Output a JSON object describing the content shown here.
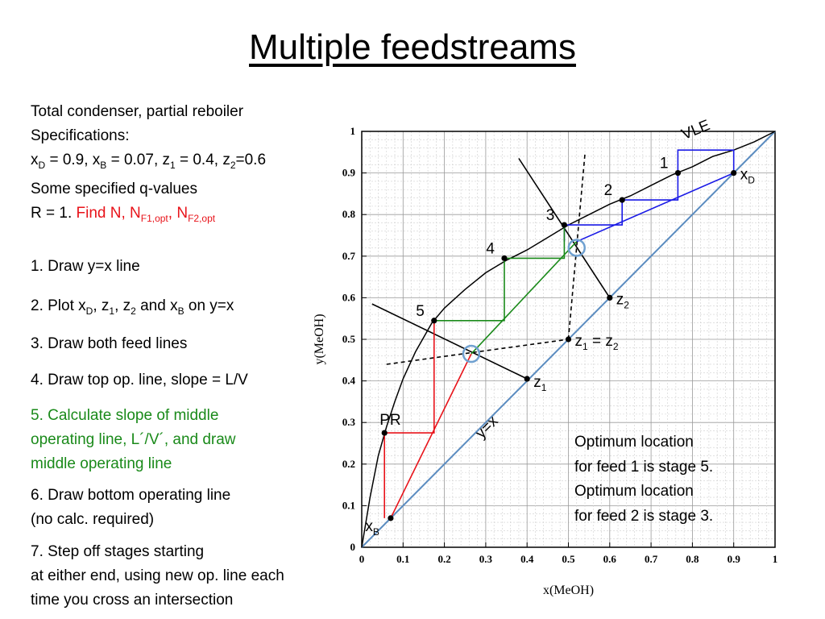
{
  "title": "Multiple feedstreams",
  "spec": {
    "line1": "Total condenser, partial reboiler",
    "line2": "Specifications:",
    "xd_label": "x",
    "xd_sub": "D",
    "xd_val": " = 0.9, x",
    "xb_sub": "B",
    "xb_val": " = 0.07,  z",
    "z1_sub": "1",
    "z1_val": " = 0.4, z",
    "z2_sub": "2",
    "z2_val": "=0.6",
    "line4": "Some specified q-values",
    "r_text": "R = 1. ",
    "find_text": "Find N, N",
    "nf1_sub": "F1,opt",
    "comma": ", N",
    "nf2_sub": "F2,opt"
  },
  "steps": {
    "s1": "1. Draw y=x line",
    "s2_a": "2. Plot x",
    "s2_sub_d": "D",
    "s2_b": ", z",
    "s2_sub_1": "1",
    "s2_c": ", z",
    "s2_sub_2": "2",
    "s2_d": " and x",
    "s2_sub_b": "B",
    "s2_e": " on y=x",
    "s3": "3. Draw both feed lines",
    "s4": "4. Draw top op. line, slope = L/V",
    "s5_l1": "5. Calculate slope of middle",
    "s5_l2": "operating line, L´/V´, and draw",
    "s5_l3": "middle operating line",
    "s6_l1": "6. Draw bottom operating line",
    "s6_l2": "(no calc. required)",
    "s7_l1": "7. Step off stages starting",
    "s7_l2": "at either end, using new op. line each",
    "s7_l3": "time you cross an intersection"
  },
  "notes": {
    "n1": "Optimum location",
    "n2": "for feed 1 is stage 5.",
    "n3": "Optimum location",
    "n4": "for feed 2 is stage 3."
  },
  "chart_data": {
    "type": "line",
    "xlabel": "x(MeOH)",
    "ylabel": "y(MeOH)",
    "xlim": [
      0,
      1
    ],
    "ylim": [
      0,
      1
    ],
    "grid": true,
    "x_ticks": [
      "0",
      "0.1",
      "0.2",
      "0.3",
      "0.4",
      "0.5",
      "0.6",
      "0.7",
      "0.8",
      "0.9",
      "1"
    ],
    "y_ticks": [
      "0",
      "0.1",
      "0.2",
      "0.3",
      "0.4",
      "0.5",
      "0.6",
      "0.7",
      "0.8",
      "0.9",
      "1"
    ],
    "vle_label": "VLE",
    "yx_label": "y=x",
    "colors": {
      "vle": "#000000",
      "diagonal": "#5b8cc0",
      "top_op": "#1a1ae6",
      "middle_op": "#1a8a1a",
      "bottom_op": "#e8131a",
      "feed_line": "#000000",
      "circle": "#6fa0d0"
    },
    "vle_curve": [
      [
        0,
        0
      ],
      [
        0.02,
        0.12
      ],
      [
        0.04,
        0.22
      ],
      [
        0.06,
        0.29
      ],
      [
        0.08,
        0.35
      ],
      [
        0.1,
        0.405
      ],
      [
        0.13,
        0.47
      ],
      [
        0.17,
        0.54
      ],
      [
        0.2,
        0.575
      ],
      [
        0.25,
        0.62
      ],
      [
        0.3,
        0.66
      ],
      [
        0.35,
        0.69
      ],
      [
        0.4,
        0.715
      ],
      [
        0.45,
        0.745
      ],
      [
        0.5,
        0.775
      ],
      [
        0.55,
        0.8
      ],
      [
        0.6,
        0.825
      ],
      [
        0.65,
        0.845
      ],
      [
        0.7,
        0.87
      ],
      [
        0.75,
        0.895
      ],
      [
        0.8,
        0.915
      ],
      [
        0.85,
        0.94
      ],
      [
        0.9,
        0.955
      ],
      [
        0.95,
        0.975
      ],
      [
        1.0,
        1.0
      ]
    ],
    "diagonal": [
      [
        0,
        0
      ],
      [
        1,
        1
      ]
    ],
    "top_op_line": [
      [
        0.52,
        0.735
      ],
      [
        0.9,
        0.9
      ]
    ],
    "middle_op_line": [
      [
        0.265,
        0.465
      ],
      [
        0.52,
        0.735
      ]
    ],
    "bottom_op_line": [
      [
        0.07,
        0.07
      ],
      [
        0.265,
        0.465
      ]
    ],
    "feed_line_1": [
      [
        0.025,
        0.585
      ],
      [
        0.4,
        0.405
      ]
    ],
    "feed_line_2": [
      [
        0.38,
        0.935
      ],
      [
        0.6,
        0.6
      ]
    ],
    "dashed_feed_lines": [
      [
        [
          0.06,
          0.44
        ],
        [
          0.5,
          0.5
        ]
      ],
      [
        [
          0.5,
          0.5
        ],
        [
          0.54,
          0.945
        ]
      ]
    ],
    "stages_top": [
      [
        0.9,
        0.9
      ],
      [
        0.9,
        0.955
      ],
      [
        0.765,
        0.955
      ],
      [
        0.765,
        0.9
      ],
      [
        0.765,
        0.835
      ],
      [
        0.63,
        0.835
      ],
      [
        0.63,
        0.775
      ],
      [
        0.63,
        0.775
      ],
      [
        0.49,
        0.775
      ],
      [
        0.49,
        0.735
      ]
    ],
    "stages_middle": [
      [
        0.49,
        0.775
      ],
      [
        0.49,
        0.695
      ],
      [
        0.345,
        0.695
      ],
      [
        0.345,
        0.625
      ],
      [
        0.345,
        0.545
      ],
      [
        0.175,
        0.545
      ],
      [
        0.175,
        0.535
      ]
    ],
    "stages_bottom": [
      [
        0.175,
        0.545
      ],
      [
        0.175,
        0.275
      ],
      [
        0.055,
        0.275
      ],
      [
        0.055,
        0.07
      ]
    ],
    "stage_points": [
      {
        "label": "1",
        "x": 0.765,
        "y": 0.9
      },
      {
        "label": "2",
        "x": 0.63,
        "y": 0.835
      },
      {
        "label": "3",
        "x": 0.49,
        "y": 0.775
      },
      {
        "label": "4",
        "x": 0.345,
        "y": 0.695
      },
      {
        "label": "5",
        "x": 0.175,
        "y": 0.545
      }
    ],
    "feed_points": [
      {
        "label": "x",
        "sub": "D",
        "x": 0.9,
        "y": 0.9
      },
      {
        "label": "z",
        "sub": "2",
        "x": 0.6,
        "y": 0.6
      },
      {
        "label": "z",
        "sub": "1",
        "x": 0.4,
        "y": 0.405
      },
      {
        "label": "z",
        "sub": "1",
        "label2": " = z",
        "sub2": "2",
        "x": 0.5,
        "y": 0.5
      },
      {
        "label": "x",
        "sub": "B",
        "x": 0.07,
        "y": 0.07
      }
    ],
    "pr_label": "PR",
    "pr_point": {
      "x": 0.055,
      "y": 0.275
    },
    "intersections": [
      [
        0.52,
        0.72
      ],
      [
        0.265,
        0.465
      ]
    ]
  }
}
